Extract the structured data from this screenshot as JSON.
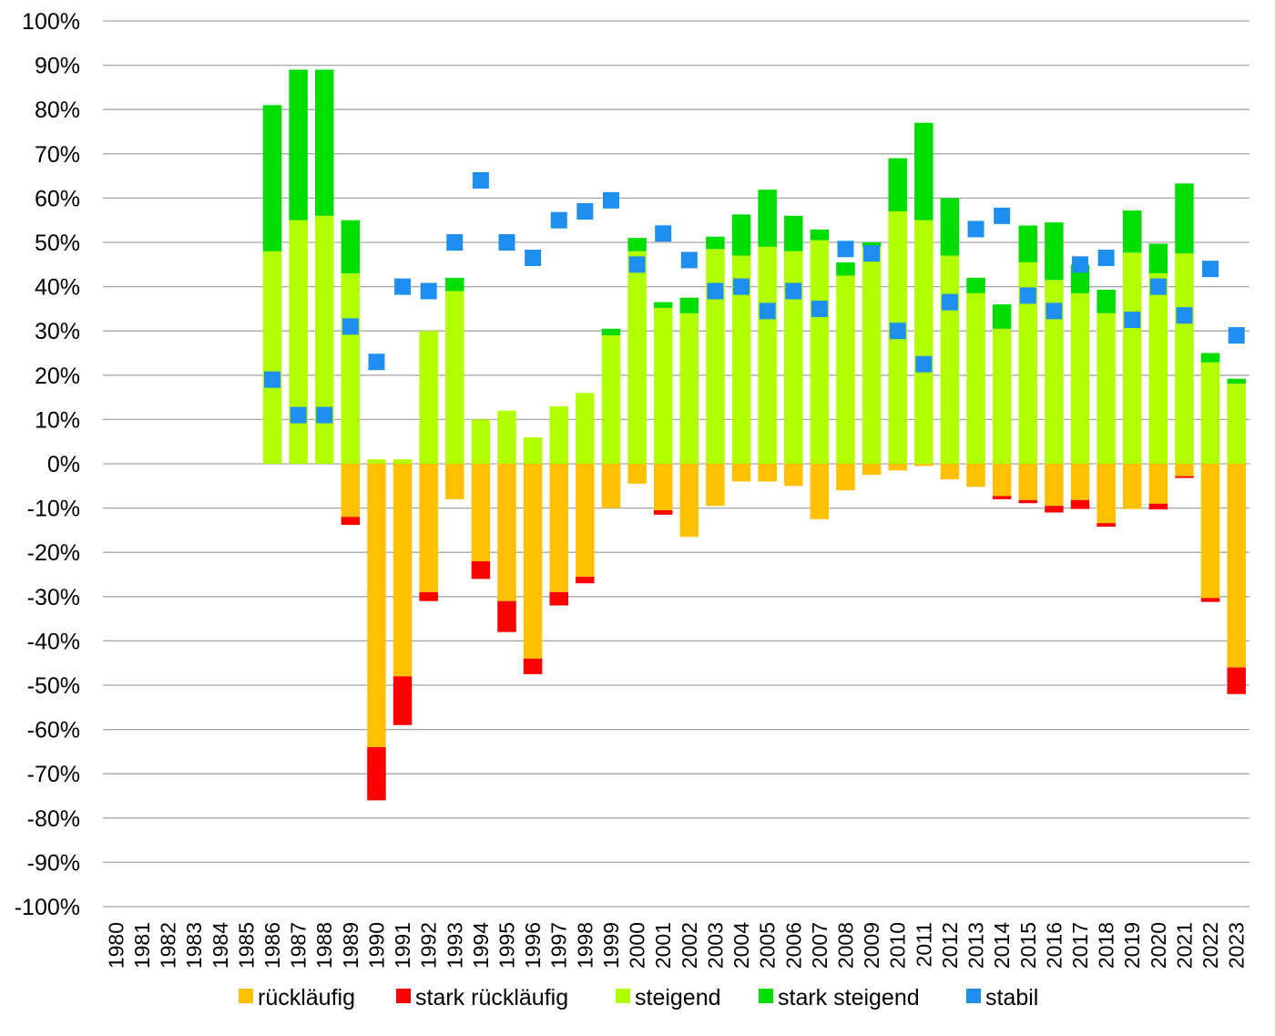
{
  "chart_data": {
    "type": "bar",
    "stacked": true,
    "categories": [
      "1980",
      "1981",
      "1982",
      "1983",
      "1984",
      "1985",
      "1986",
      "1987",
      "1988",
      "1989",
      "1990",
      "1991",
      "1992",
      "1993",
      "1994",
      "1995",
      "1996",
      "1997",
      "1998",
      "1999",
      "2000",
      "2001",
      "2002",
      "2003",
      "2004",
      "2005",
      "2006",
      "2007",
      "2008",
      "2009",
      "2010",
      "2011",
      "2012",
      "2013",
      "2014",
      "2015",
      "2016",
      "2017",
      "2018",
      "2019",
      "2020",
      "2021",
      "2022",
      "2023"
    ],
    "ylim": [
      -100,
      100
    ],
    "ytick_step": 10,
    "ytick_suffix": "%",
    "grid": true,
    "legend_position": "bottom",
    "series": [
      {
        "name": "rückläufig",
        "kind": "bar-negative",
        "color": "#ffc000",
        "values": [
          null,
          null,
          null,
          null,
          null,
          null,
          0,
          0,
          0,
          -12,
          -64,
          -48,
          -29,
          -8,
          -22,
          -31,
          -44,
          -29,
          -25.5,
          -10,
          -4.5,
          -10.5,
          -16.5,
          -9.5,
          -4,
          -4,
          -5,
          -12.5,
          -6,
          -2.5,
          -1.5,
          -0.5,
          -3.5,
          -5.2,
          -7.3,
          -8.2,
          -9.5,
          -8.2,
          -13.4,
          -10.2,
          -9,
          -2.8,
          -30.3,
          -46
        ]
      },
      {
        "name": "stark rückläufig",
        "kind": "bar-negative",
        "color": "#ff0000",
        "values": [
          null,
          null,
          null,
          null,
          null,
          null,
          0,
          0,
          0,
          -1.8,
          -12,
          -11,
          -2,
          0,
          -4,
          -7,
          -3.5,
          -3,
          -1.5,
          0,
          0,
          -1,
          0,
          0,
          0,
          0,
          0,
          0,
          0,
          0,
          0,
          0,
          0,
          0,
          -0.7,
          -0.7,
          -1.5,
          -2,
          -0.8,
          0,
          -1.3,
          -0.4,
          -0.9,
          -6
        ]
      },
      {
        "name": "steigend",
        "kind": "bar-positive",
        "color": "#b2ff00",
        "values": [
          null,
          null,
          null,
          null,
          null,
          null,
          48,
          55,
          56,
          43,
          1,
          1,
          30,
          39,
          10,
          12,
          6,
          13,
          16,
          29,
          48,
          35.2,
          34,
          48.5,
          47,
          49,
          48,
          50.5,
          42.5,
          49,
          57,
          55,
          47,
          38.5,
          30.5,
          45.5,
          41.5,
          38.5,
          34,
          47.7,
          43,
          47.5,
          22.9,
          18.1
        ]
      },
      {
        "name": "stark steigend",
        "kind": "bar-positive",
        "color": "#00dd00",
        "values": [
          null,
          null,
          null,
          null,
          null,
          null,
          33,
          34,
          33,
          12,
          0,
          0,
          0,
          3,
          0,
          0,
          0,
          0,
          0,
          1.5,
          3,
          1.3,
          3.5,
          2.8,
          9.3,
          12.9,
          8,
          2.4,
          3,
          1,
          12,
          22,
          13,
          3.5,
          5.5,
          8.3,
          13,
          6.5,
          5.3,
          9.5,
          6.7,
          15.8,
          2.1,
          1.1
        ]
      },
      {
        "name": "stabil",
        "kind": "marker",
        "color": "#1e8ff0",
        "values": [
          null,
          null,
          null,
          null,
          null,
          null,
          19,
          11,
          11,
          31,
          23,
          40,
          39,
          50,
          64,
          50,
          46.5,
          55,
          57,
          59.5,
          45,
          52,
          46,
          39,
          40,
          34.5,
          39,
          35,
          48.5,
          47.5,
          30,
          22.5,
          36.5,
          53,
          56,
          38,
          34.5,
          45,
          46.5,
          32.5,
          40,
          33.5,
          44,
          29
        ]
      }
    ]
  }
}
